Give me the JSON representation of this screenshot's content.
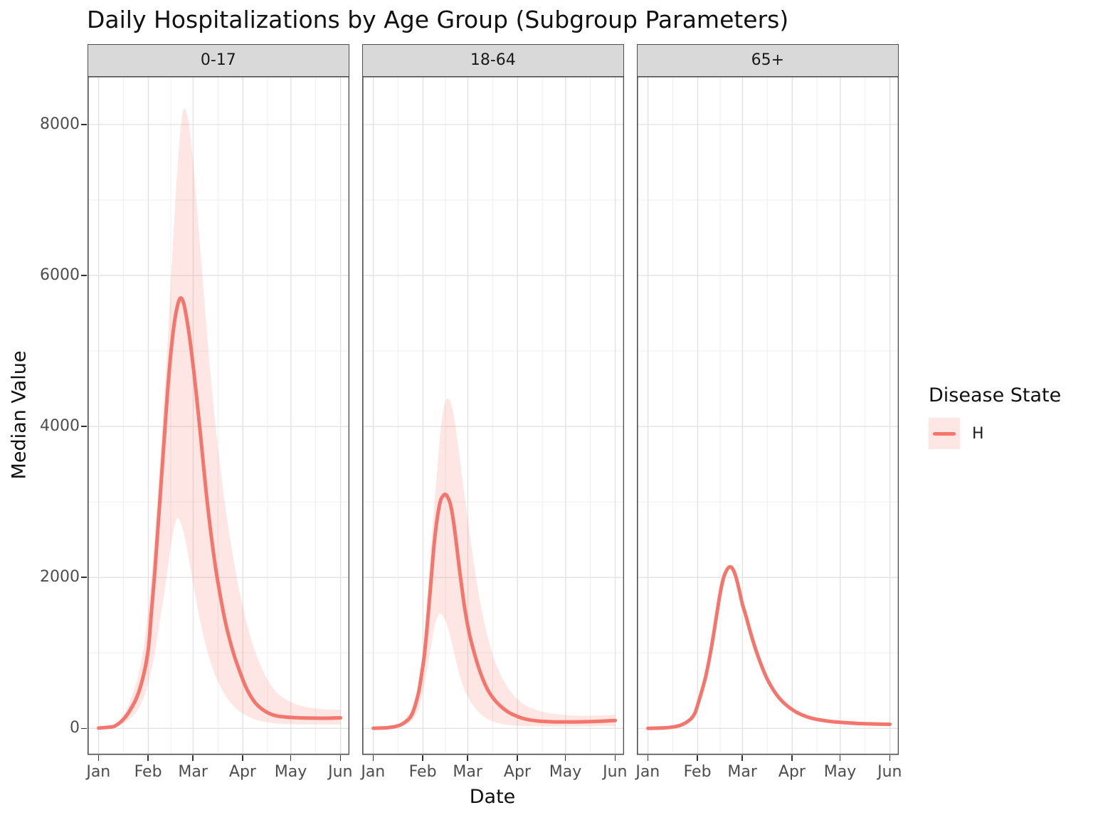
{
  "title": "Daily Hospitalizations by Age Group (Subgroup Parameters)",
  "x_axis": {
    "title": "Date"
  },
  "y_axis": {
    "title": "Median Value"
  },
  "legend": {
    "title": "Disease State",
    "items": [
      {
        "label": "H"
      }
    ]
  },
  "colors": {
    "line": "#F4756C",
    "ribbon": "rgba(244,117,108,0.18)",
    "strip_fill": "#D9D9D9",
    "panel_border": "#4D4D4D",
    "grid_major": "#E3E3E3",
    "grid_minor": "#F0F0F0",
    "tick_mark": "#333333",
    "tick_text": "#4D4D4D"
  },
  "chart_data": {
    "type": "line",
    "title": "Daily Hospitalizations by Age Group (Subgroup Parameters)",
    "xlabel": "Date",
    "ylabel": "Median Value",
    "legend_title": "Disease State",
    "legend_position": "right",
    "series_name": "H",
    "x_unit": "days since Jan 1",
    "x_domain": [
      0,
      151
    ],
    "y_domain_shown": [
      0,
      8650
    ],
    "x_ticks": {
      "days": [
        0,
        31,
        59,
        90,
        120,
        151
      ],
      "labels": [
        "Jan",
        "Feb",
        "Mar",
        "Apr",
        "May",
        "Jun"
      ]
    },
    "x_minor_days": [
      15.5,
      45,
      74.5,
      105.5,
      135.5
    ],
    "y_ticks": {
      "values": [
        0,
        2000,
        4000,
        6000,
        8000
      ],
      "labels": [
        "0",
        "2000",
        "4000",
        "6000",
        "8000"
      ]
    },
    "y_minor_values": [
      1000,
      3000,
      5000,
      7000
    ],
    "grid": true,
    "facets": [
      {
        "label": "0-17",
        "peak": {
          "day": 51,
          "median": 5700,
          "upper": 8230,
          "lower": 2790
        },
        "days": [
          0,
          6,
          10,
          15,
          19,
          24,
          28,
          31,
          33,
          35,
          37,
          39,
          41,
          43,
          45,
          47,
          49,
          51,
          53,
          55,
          57,
          59,
          61,
          64,
          67,
          70,
          73,
          76,
          79,
          82,
          85,
          88,
          91,
          94,
          97,
          100,
          104,
          108,
          112,
          118,
          126,
          134,
          142,
          151
        ],
        "median": [
          5,
          15,
          30,
          110,
          220,
          420,
          700,
          1050,
          1550,
          2050,
          2650,
          3250,
          3850,
          4450,
          4950,
          5330,
          5580,
          5700,
          5640,
          5430,
          5150,
          4800,
          4420,
          3800,
          3150,
          2600,
          2130,
          1750,
          1420,
          1160,
          940,
          760,
          590,
          460,
          360,
          290,
          225,
          185,
          162,
          148,
          140,
          136,
          135,
          140
        ],
        "upper": [
          8,
          25,
          45,
          160,
          330,
          640,
          1050,
          1560,
          2000,
          2500,
          3100,
          3750,
          4400,
          5100,
          5900,
          6650,
          7350,
          7900,
          8200,
          8150,
          7900,
          7500,
          7000,
          6200,
          5400,
          4650,
          4000,
          3450,
          2950,
          2520,
          2140,
          1810,
          1520,
          1270,
          1060,
          890,
          700,
          560,
          460,
          370,
          300,
          268,
          252,
          248
        ],
        "lower": [
          3,
          9,
          18,
          60,
          120,
          230,
          400,
          600,
          780,
          1000,
          1250,
          1530,
          1800,
          2100,
          2400,
          2650,
          2780,
          2740,
          2600,
          2400,
          2170,
          1920,
          1680,
          1360,
          1090,
          870,
          690,
          550,
          440,
          350,
          280,
          225,
          182,
          150,
          124,
          105,
          86,
          73,
          64,
          57,
          52,
          50,
          50,
          52
        ]
      },
      {
        "label": "18-64",
        "peak": {
          "day": 45,
          "median": 3100,
          "upper": 4370,
          "lower": 1520
        },
        "days": [
          0,
          8,
          14,
          19,
          24,
          28,
          30,
          32,
          34,
          36,
          38,
          40,
          42,
          44,
          45,
          46,
          48,
          50,
          52,
          54,
          57,
          60,
          63,
          66,
          69,
          72,
          76,
          80,
          84,
          88,
          93,
          98,
          104,
          112,
          122,
          132,
          142,
          151
        ],
        "median": [
          2,
          8,
          25,
          70,
          180,
          450,
          700,
          1000,
          1450,
          1950,
          2450,
          2800,
          3020,
          3090,
          3100,
          3080,
          2980,
          2750,
          2420,
          2070,
          1600,
          1250,
          1000,
          790,
          620,
          490,
          370,
          285,
          220,
          175,
          135,
          110,
          95,
          87,
          85,
          88,
          95,
          105
        ],
        "upper": [
          3,
          15,
          45,
          110,
          260,
          560,
          850,
          1250,
          1800,
          2400,
          2950,
          3450,
          3950,
          4250,
          4330,
          4370,
          4340,
          4180,
          3900,
          3580,
          3080,
          2600,
          2150,
          1760,
          1430,
          1160,
          890,
          690,
          540,
          430,
          335,
          275,
          228,
          195,
          175,
          168,
          172,
          182
        ],
        "lower": [
          1,
          5,
          15,
          40,
          100,
          240,
          400,
          600,
          830,
          1080,
          1330,
          1480,
          1520,
          1470,
          1430,
          1370,
          1220,
          1040,
          860,
          700,
          510,
          380,
          283,
          210,
          156,
          117,
          82,
          60,
          46,
          38,
          31,
          28,
          26,
          25,
          26,
          27,
          28,
          30
        ]
      },
      {
        "label": "65+",
        "peak": {
          "day": 51,
          "median": 2140
        },
        "days": [
          0,
          8,
          14,
          20,
          25,
          29,
          32,
          35,
          37,
          39,
          41,
          43,
          45,
          47,
          49,
          51,
          53,
          55,
          57,
          59,
          61,
          64,
          67,
          70,
          73,
          76,
          80,
          84,
          88,
          93,
          98,
          104,
          112,
          120,
          130,
          140,
          151
        ],
        "median": [
          1,
          5,
          14,
          40,
          95,
          190,
          380,
          600,
          780,
          1000,
          1250,
          1520,
          1780,
          1980,
          2090,
          2140,
          2110,
          2000,
          1830,
          1640,
          1500,
          1270,
          1060,
          880,
          720,
          590,
          455,
          355,
          280,
          210,
          163,
          125,
          97,
          80,
          67,
          59,
          55
        ],
        "upper": null,
        "lower": null
      }
    ]
  }
}
